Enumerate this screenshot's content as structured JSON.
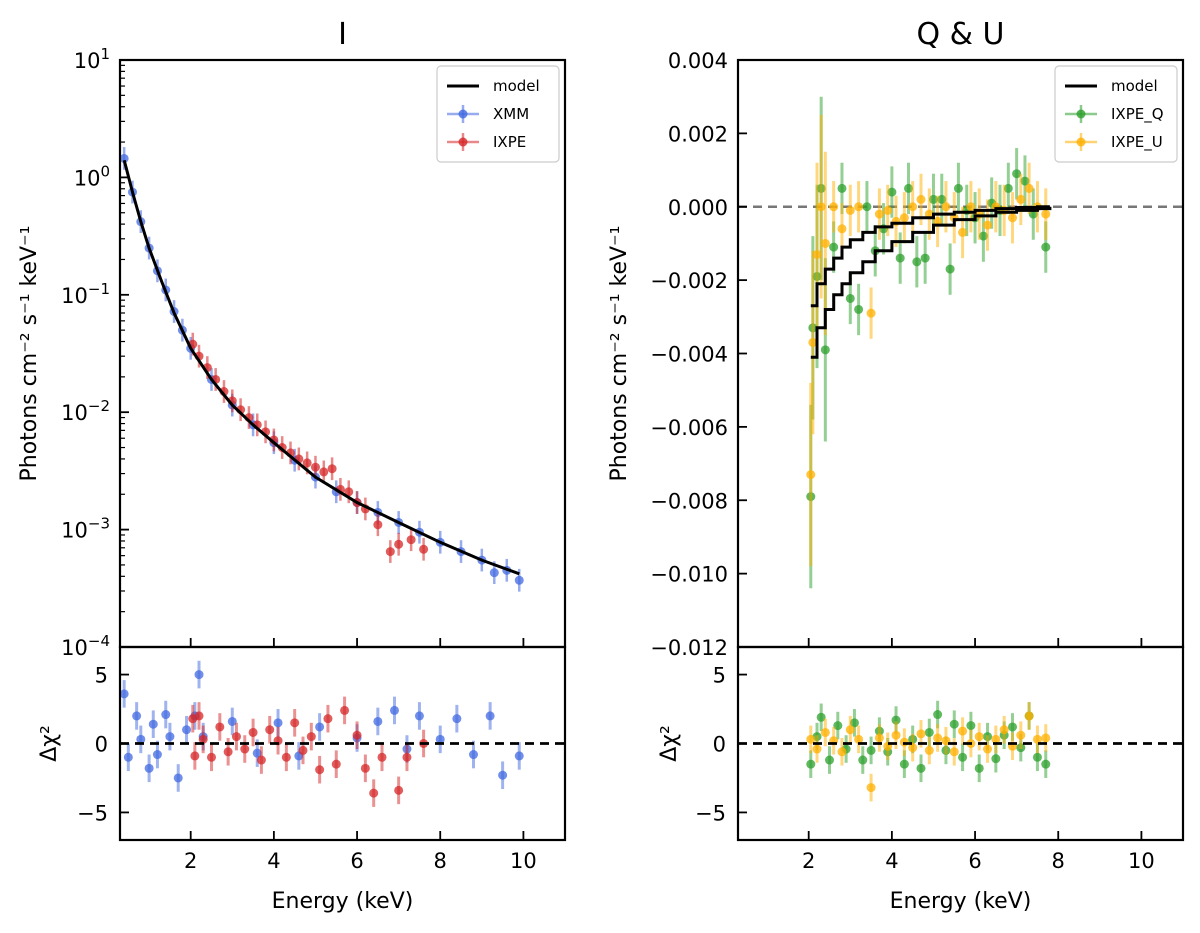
{
  "chart_data": [
    {
      "id": "I",
      "type": "scatter",
      "title": "I",
      "xlabel": "Energy (keV)",
      "ylabel": "Photons cm⁻² s⁻¹ keV⁻¹",
      "xlim": [
        0.3,
        11
      ],
      "xticks": [
        2,
        4,
        6,
        8,
        10
      ],
      "top": {
        "yscale": "log",
        "ylim": [
          0.0001,
          10
        ],
        "yticks": [
          {
            "value": 10,
            "base": "10",
            "exp": "1"
          },
          {
            "value": 1,
            "base": "10",
            "exp": "0"
          },
          {
            "value": 0.1,
            "base": "10",
            "exp": "−1"
          },
          {
            "value": 0.01,
            "base": "10",
            "exp": "−2"
          },
          {
            "value": 0.001,
            "base": "10",
            "exp": "−3"
          },
          {
            "value": 0.0001,
            "base": "10",
            "exp": "−4"
          }
        ],
        "legend": [
          {
            "label": "model",
            "kind": "line",
            "color": "#000000"
          },
          {
            "label": "XMM",
            "kind": "point",
            "color": "#4169e1"
          },
          {
            "label": "IXPE",
            "kind": "point",
            "color": "#d62728"
          }
        ],
        "model": {
          "x": [
            0.4,
            0.6,
            0.8,
            1.0,
            1.3,
            1.6,
            2.0,
            2.5,
            3.0,
            3.5,
            4.0,
            5.0,
            6.0,
            7.0,
            8.0,
            9.0,
            9.9
          ],
          "y": [
            1.4,
            0.75,
            0.42,
            0.25,
            0.13,
            0.07,
            0.035,
            0.019,
            0.0115,
            0.0078,
            0.0055,
            0.0028,
            0.0017,
            0.00115,
            0.00078,
            0.00055,
            0.00042
          ]
        },
        "series": [
          {
            "name": "XMM",
            "color": "#4169e1",
            "x": [
              0.4,
              0.6,
              0.8,
              1.0,
              1.2,
              1.4,
              1.6,
              1.8,
              2.0,
              2.5,
              3.0,
              3.5,
              4.0,
              4.5,
              5.0,
              5.5,
              6.0,
              6.5,
              7.0,
              7.5,
              8.0,
              8.5,
              9.0,
              9.3,
              9.6,
              9.9
            ],
            "y": [
              1.45,
              0.75,
              0.42,
              0.25,
              0.16,
              0.11,
              0.072,
              0.05,
              0.035,
              0.019,
              0.0115,
              0.0078,
              0.0055,
              0.0039,
              0.0028,
              0.0021,
              0.0017,
              0.0014,
              0.00115,
              0.00095,
              0.00078,
              0.00065,
              0.00055,
              0.00043,
              0.00045,
              0.00037
            ]
          },
          {
            "name": "IXPE",
            "color": "#d62728",
            "x": [
              2.05,
              2.2,
              2.4,
              2.6,
              2.8,
              3.0,
              3.2,
              3.4,
              3.6,
              3.8,
              4.0,
              4.2,
              4.4,
              4.6,
              4.8,
              5.0,
              5.2,
              5.4,
              5.6,
              5.8,
              6.0,
              6.2,
              6.5,
              6.8,
              7.0,
              7.3,
              7.6
            ],
            "y": [
              0.038,
              0.03,
              0.024,
              0.019,
              0.015,
              0.0125,
              0.0105,
              0.009,
              0.0078,
              0.0068,
              0.0058,
              0.005,
              0.0045,
              0.004,
              0.0037,
              0.0034,
              0.0031,
              0.0033,
              0.0022,
              0.0021,
              0.0017,
              0.0015,
              0.0011,
              0.00065,
              0.00075,
              0.00082,
              0.00068
            ]
          }
        ]
      },
      "bottom": {
        "ylabel": "Δχ²",
        "ylim": [
          -7,
          7
        ],
        "yticks": [
          -5,
          0,
          5
        ],
        "series": [
          {
            "name": "XMM",
            "color": "#4169e1",
            "x": [
              0.4,
              0.5,
              0.7,
              0.8,
              1.0,
              1.1,
              1.2,
              1.4,
              1.5,
              1.7,
              1.9,
              2.1,
              2.2,
              2.3,
              3.0,
              3.6,
              4.1,
              4.6,
              5.1,
              6.0,
              6.5,
              6.9,
              7.2,
              7.5,
              8.0,
              8.4,
              8.8,
              9.2,
              9.5,
              9.9
            ],
            "y": [
              3.6,
              -1.0,
              2.0,
              0.3,
              -1.8,
              1.4,
              -0.8,
              2.1,
              0.5,
              -2.5,
              1.0,
              2.0,
              5.0,
              0.5,
              1.6,
              -0.7,
              1.5,
              -0.9,
              1.2,
              0.4,
              1.6,
              2.4,
              -0.4,
              2.0,
              0.3,
              1.8,
              -0.8,
              2.0,
              -2.3,
              -0.9
            ]
          },
          {
            "name": "IXPE",
            "color": "#d62728",
            "x": [
              2.05,
              2.1,
              2.2,
              2.3,
              2.5,
              2.7,
              2.9,
              3.1,
              3.3,
              3.5,
              3.7,
              3.9,
              4.1,
              4.3,
              4.5,
              4.7,
              4.9,
              5.1,
              5.3,
              5.5,
              5.7,
              6.0,
              6.2,
              6.4,
              6.6,
              7.0,
              7.2,
              7.6
            ],
            "y": [
              1.8,
              -0.9,
              2.0,
              0.3,
              -1.0,
              1.2,
              -0.6,
              0.5,
              -0.4,
              0.8,
              -1.2,
              1.0,
              0.2,
              -1.0,
              1.5,
              -0.5,
              0.5,
              -1.9,
              1.8,
              -1.5,
              2.4,
              0.6,
              -1.8,
              -3.6,
              -1.0,
              -3.4,
              -1.0,
              0.0
            ]
          }
        ]
      }
    },
    {
      "id": "QU",
      "type": "scatter",
      "title": "Q & U",
      "xlabel": "Energy (keV)",
      "ylabel": "Photons cm⁻² s⁻¹ keV⁻¹",
      "xlim": [
        0.3,
        11
      ],
      "xticks": [
        2,
        4,
        6,
        8,
        10
      ],
      "top": {
        "yscale": "linear",
        "ylim": [
          -0.012,
          0.004
        ],
        "ytick_values": [
          0.004,
          0.002,
          0.0,
          -0.002,
          -0.004,
          -0.006,
          -0.008,
          -0.01,
          -0.012
        ],
        "ytick_labels": [
          "0.004",
          "0.002",
          "0.000",
          "−0.002",
          "−0.004",
          "−0.006",
          "−0.008",
          "−0.010",
          "−0.012"
        ],
        "legend": [
          {
            "label": "model",
            "kind": "line",
            "color": "#000000"
          },
          {
            "label": "IXPE_Q",
            "kind": "point",
            "color": "#2ca02c"
          },
          {
            "label": "IXPE_U",
            "kind": "point",
            "color": "#ffb000"
          }
        ],
        "zero_line": 0,
        "models": [
          {
            "x": [
              2.05,
              2.2,
              2.4,
              2.6,
              2.8,
              3.0,
              3.3,
              3.6,
              4.0,
              4.5,
              5.0,
              5.5,
              6.0,
              6.5,
              7.0,
              7.5,
              7.8
            ],
            "y": [
              -0.0041,
              -0.0033,
              -0.0028,
              -0.0024,
              -0.0021,
              -0.0018,
              -0.0015,
              -0.0012,
              -0.00095,
              -0.0007,
              -0.0005,
              -0.00035,
              -0.00025,
              -0.00015,
              -0.0001,
              -5e-05,
              0.0
            ]
          },
          {
            "x": [
              2.05,
              2.2,
              2.4,
              2.6,
              2.8,
              3.0,
              3.3,
              3.6,
              4.0,
              4.5,
              5.0,
              5.5,
              6.0,
              6.5,
              7.0,
              7.5,
              7.8
            ],
            "y": [
              -0.0027,
              -0.0021,
              -0.0017,
              -0.0014,
              -0.0011,
              -0.0009,
              -0.0007,
              -0.00055,
              -0.00045,
              -0.0003,
              -0.0002,
              -0.00015,
              -0.0001,
              -5e-05,
              -2e-05,
              0.0,
              0.0
            ]
          }
        ],
        "series": [
          {
            "name": "IXPE_Q",
            "color": "#2ca02c",
            "x": [
              2.05,
              2.1,
              2.2,
              2.3,
              2.4,
              2.6,
              2.8,
              3.0,
              3.2,
              3.4,
              3.6,
              3.8,
              4.0,
              4.2,
              4.4,
              4.6,
              4.8,
              5.0,
              5.2,
              5.4,
              5.6,
              5.8,
              6.0,
              6.2,
              6.4,
              6.6,
              6.8,
              7.0,
              7.2,
              7.4,
              7.7
            ],
            "y": [
              -0.0079,
              -0.0033,
              -0.0019,
              0.0005,
              -0.0039,
              -0.0011,
              0.0005,
              -0.0025,
              -0.0028,
              0.0,
              -0.0012,
              -0.0006,
              0.0004,
              -0.0014,
              0.0005,
              -0.0015,
              -0.0014,
              0.0002,
              0.0002,
              -0.0017,
              0.0005,
              -0.0001,
              -0.0003,
              -0.0008,
              0.0001,
              -0.0001,
              0.0005,
              0.0009,
              0.0007,
              -0.0002,
              -0.0011
            ]
          },
          {
            "name": "IXPE_U",
            "color": "#ffb000",
            "x": [
              2.05,
              2.1,
              2.2,
              2.3,
              2.4,
              2.6,
              2.8,
              3.0,
              3.2,
              3.5,
              3.7,
              3.9,
              4.1,
              4.3,
              4.5,
              4.7,
              4.9,
              5.1,
              5.3,
              5.5,
              5.7,
              5.9,
              6.1,
              6.3,
              6.5,
              6.7,
              6.9,
              7.1,
              7.3,
              7.5,
              7.7
            ],
            "y": [
              -0.0073,
              -0.0037,
              -0.0013,
              0.0,
              -0.001,
              0.0,
              -0.0006,
              -0.0001,
              0.0,
              -0.0029,
              -0.0002,
              -0.0001,
              -0.0004,
              -0.0003,
              0.0,
              0.0002,
              -0.0002,
              -0.0004,
              0.0,
              -0.0003,
              -0.0007,
              0.0,
              -0.0002,
              -0.0005,
              0.0,
              -0.0001,
              -0.0003,
              0.0002,
              0.0005,
              0.0,
              -0.0002
            ]
          }
        ]
      },
      "bottom": {
        "ylabel": "Δχ²",
        "ylim": [
          -7,
          7
        ],
        "yticks": [
          -5,
          0,
          5
        ],
        "series": [
          {
            "name": "IXPE_Q",
            "color": "#2ca02c",
            "x": [
              2.05,
              2.2,
              2.3,
              2.5,
              2.7,
              2.9,
              3.1,
              3.3,
              3.5,
              3.7,
              3.9,
              4.1,
              4.3,
              4.5,
              4.7,
              4.9,
              5.1,
              5.3,
              5.5,
              5.7,
              5.9,
              6.1,
              6.3,
              6.5,
              6.7,
              6.9,
              7.1,
              7.3,
              7.5,
              7.7
            ],
            "y": [
              -1.5,
              0.5,
              1.9,
              -1.2,
              1.3,
              -0.4,
              1.5,
              -1.2,
              -0.5,
              0.9,
              -0.6,
              1.7,
              -1.5,
              0.3,
              -1.8,
              0.8,
              2.1,
              -0.5,
              1.4,
              -1.0,
              1.3,
              -1.8,
              0.5,
              -1.1,
              0.6,
              1.2,
              -0.3,
              2.0,
              -1.0,
              -1.5
            ]
          },
          {
            "name": "IXPE_U",
            "color": "#ffb000",
            "x": [
              2.05,
              2.2,
              2.4,
              2.6,
              2.8,
              3.0,
              3.2,
              3.5,
              3.7,
              3.9,
              4.1,
              4.3,
              4.5,
              4.7,
              4.9,
              5.1,
              5.3,
              5.5,
              5.7,
              5.9,
              6.1,
              6.3,
              6.5,
              6.7,
              6.9,
              7.1,
              7.3,
              7.5,
              7.7
            ],
            "y": [
              0.3,
              -0.4,
              0.8,
              0.2,
              -0.6,
              1.0,
              0.3,
              -3.2,
              0.4,
              -0.2,
              0.6,
              0.1,
              -0.3,
              0.7,
              -0.5,
              0.4,
              0.2,
              -0.6,
              0.9,
              0.0,
              0.5,
              -0.4,
              0.3,
              1.0,
              -0.2,
              0.6,
              2.0,
              0.3,
              0.4
            ]
          }
        ]
      }
    }
  ]
}
